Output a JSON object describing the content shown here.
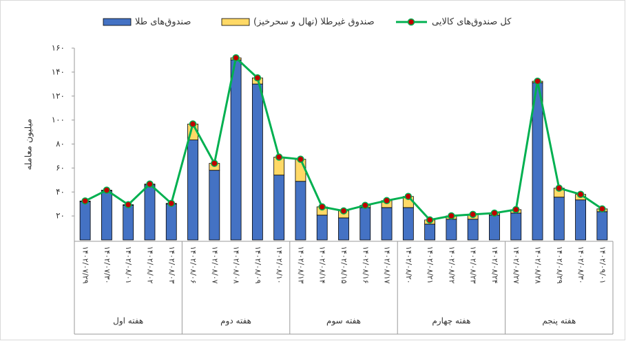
{
  "chart_data": {
    "type": "bar-line",
    "y_label": "میلیون معامله",
    "categories": [
      "۱۴۰۲/۰۷/۲۹",
      "۱۴۰۲/۰۷/۳۰",
      "۱۴۰۲/۰۸/۰۱",
      "۱۴۰۲/۰۸/۰۲",
      "۱۴۰۲/۰۸/۰۳",
      "۱۴۰۲/۰۸/۰۶",
      "۱۴۰۲/۰۸/۰۷",
      "۱۴۰۲/۰۸/۰۸",
      "۱۴۰۲/۰۸/۰۹",
      "۱۴۰۲/۰۸/۱۰",
      "۱۴۰۲/۰۸/۱۳",
      "۱۴۰۲/۰۸/۱۴",
      "۱۴۰۲/۰۸/۱۵",
      "۱۴۰۲/۰۸/۱۶",
      "۱۴۰۲/۰۸/۱۷",
      "۱۴۰۲/۰۸/۲۰",
      "۱۴۰۲/۰۸/۲۱",
      "۱۴۰۲/۰۸/۲۲",
      "۱۴۰۲/۰۸/۲۳",
      "۱۴۰۲/۰۸/۲۴",
      "۱۴۰۲/۰۸/۲۷",
      "۱۴۰۲/۰۸/۲۸",
      "۱۴۰۲/۰۸/۲۹",
      "۱۴۰۲/۰۸/۳۰",
      "۱۴۰۲/۰۹/۰۱"
    ],
    "groups": [
      "هفته اول",
      "هفته دوم",
      "هفته سوم",
      "هفته چهارم",
      "هفته پنجم"
    ],
    "series": [
      {
        "name": "صندوق‌های طلا",
        "type": "bar",
        "color": "#4472c4",
        "values": [
          32,
          41,
          29,
          46,
          30,
          83.4,
          58.1,
          150.2,
          130.1,
          54.1,
          48.9,
          20.7,
          18.4,
          27,
          27,
          27,
          13.2,
          17.3,
          17.3,
          20.7,
          22.4,
          131.2,
          35.7,
          33.4,
          23.6
        ]
      },
      {
        "name": "صندوق غیرطلا (نهال و سحرخیز)",
        "type": "bar",
        "color": "#ffd966",
        "values": [
          0.5,
          0.5,
          0.4,
          0.6,
          0.5,
          13.3,
          5.8,
          1.7,
          5.1,
          15,
          18.4,
          6.9,
          5.8,
          1.8,
          5.8,
          9.3,
          3.5,
          2.8,
          4,
          1.7,
          2.9,
          1.2,
          7.5,
          4.6,
          2.3
        ]
      },
      {
        "name": "کل صندوق‌های کالایی",
        "type": "line",
        "color": "#00b050",
        "marker_color": "#c00000",
        "values": [
          32.5,
          41.5,
          29.4,
          46.6,
          30.5,
          96.7,
          63.9,
          151.9,
          135.2,
          69.1,
          67.3,
          27.6,
          24.2,
          28.8,
          32.8,
          36.3,
          16.7,
          20.1,
          21.3,
          22.4,
          25.3,
          132.4,
          43.2,
          38,
          25.9
        ]
      }
    ],
    "ylim": [
      0,
      160
    ],
    "yticks": [
      {
        "value": 20,
        "label": "۲۰"
      },
      {
        "value": 40,
        "label": "۴۰"
      },
      {
        "value": 60,
        "label": "۶۰"
      },
      {
        "value": 80,
        "label": "۸۰"
      },
      {
        "value": 100,
        "label": "۱۰۰"
      },
      {
        "value": 120,
        "label": "۱۲۰"
      },
      {
        "value": 140,
        "label": "۱۴۰"
      },
      {
        "value": 160,
        "label": "۱۶۰"
      }
    ]
  }
}
